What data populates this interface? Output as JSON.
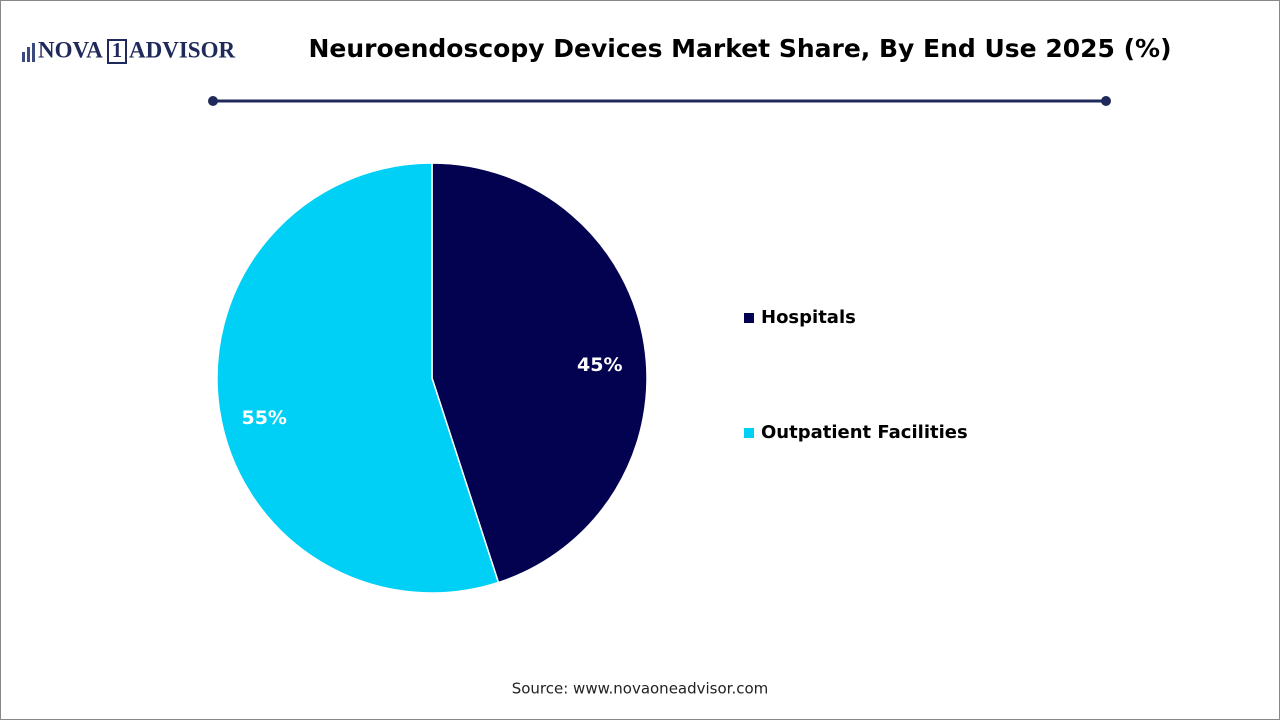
{
  "logo": {
    "left": "NOVA",
    "mark": "1",
    "right": "ADVISOR"
  },
  "chart_data": {
    "type": "pie",
    "title": "Neuroendoscopy Devices Market Share, By End Use 2025 (%)",
    "categories": [
      "Hospitals",
      "Outpatient Facilities"
    ],
    "values": [
      45,
      55
    ],
    "value_labels": [
      "45%",
      "55%"
    ],
    "colors": [
      "#020251",
      "#00d0f5"
    ],
    "source": "Source: www.novaoneadvisor.com"
  }
}
